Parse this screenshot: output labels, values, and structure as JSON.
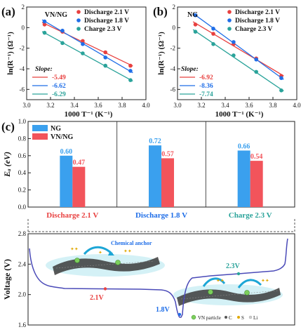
{
  "panels": {
    "a": {
      "label": "(a)",
      "tag": "VN/NG"
    },
    "b": {
      "label": "(b)",
      "tag": "NG"
    },
    "c": {
      "label": "(c)"
    }
  },
  "colors": {
    "red": "#e8403f",
    "blue": "#1f6ee8",
    "teal": "#2aa39a",
    "ng_bar": "#3aa0ee",
    "vnng_bar": "#f2545b",
    "curve": "#4a4ab8"
  },
  "chart_data": [
    {
      "type": "scatter",
      "panel": "a",
      "xlabel": "1000 T⁻¹ (K⁻¹)",
      "ylabel": "ln(R⁻¹) (Ω⁻¹)",
      "xlim": [
        3.0,
        4.0
      ],
      "ylim": [
        -7,
        2
      ],
      "xticks": [
        "3.0",
        "3.2",
        "3.4",
        "3.6",
        "3.8",
        "4.0"
      ],
      "yticks": [
        "-6",
        "-4",
        "-2",
        "0",
        "2"
      ],
      "legend_position": "top-right",
      "slope_title": "Slope:",
      "series": [
        {
          "name": "Discharge 2.1 V",
          "color": "red",
          "slope": "-5.49",
          "x": [
            3.15,
            3.3,
            3.47,
            3.66,
            3.87
          ],
          "y": [
            0.3,
            -0.4,
            -1.3,
            -2.4,
            -3.7
          ]
        },
        {
          "name": "Discharge 1.8 V",
          "color": "blue",
          "slope": "-6.62",
          "x": [
            3.15,
            3.3,
            3.47,
            3.66,
            3.87
          ],
          "y": [
            0.6,
            -0.3,
            -1.6,
            -2.9,
            -4.2
          ]
        },
        {
          "name": "Charge 2.3 V",
          "color": "teal",
          "slope": "-6.29",
          "x": [
            3.15,
            3.3,
            3.47,
            3.66,
            3.87
          ],
          "y": [
            -0.5,
            -1.5,
            -2.5,
            -3.7,
            -5.1
          ]
        }
      ]
    },
    {
      "type": "scatter",
      "panel": "b",
      "xlabel": "1000 T⁻¹ (K⁻¹)",
      "ylabel": "ln(R⁻¹) (Ω⁻¹)",
      "xlim": [
        3.0,
        4.0
      ],
      "ylim": [
        -7,
        2
      ],
      "xticks": [
        "3.0",
        "3.2",
        "3.4",
        "3.6",
        "3.8",
        "4.0"
      ],
      "yticks": [
        "-6",
        "-4",
        "-2",
        "0",
        "2"
      ],
      "legend_position": "top-right",
      "slope_title": "Slope:",
      "series": [
        {
          "name": "Discharge 2.1 V",
          "color": "red",
          "slope": "-6.92",
          "x": [
            3.15,
            3.3,
            3.47,
            3.66,
            3.87
          ],
          "y": [
            0.3,
            -0.6,
            -1.6,
            -3.0,
            -4.7
          ]
        },
        {
          "name": "Discharge 1.8 V",
          "color": "blue",
          "slope": "-8.36",
          "x": [
            3.15,
            3.3,
            3.47,
            3.66,
            3.87
          ],
          "y": [
            1.2,
            -0.1,
            -1.4,
            -3.1,
            -4.9
          ]
        },
        {
          "name": "Charge 2.3 V",
          "color": "teal",
          "slope": "-7.74",
          "x": [
            3.15,
            3.3,
            3.47,
            3.66,
            3.87
          ],
          "y": [
            -0.4,
            -1.6,
            -2.7,
            -4.3,
            -6.1
          ]
        }
      ]
    },
    {
      "type": "bar",
      "panel": "c",
      "ylabel": "Eₐ (eV)",
      "ylim": [
        0,
        1.0
      ],
      "yticks": [
        "0.0",
        "0.2",
        "0.4",
        "0.6",
        "0.8",
        "1.0"
      ],
      "categories": [
        "Discharge 2.1 V",
        "Discharge 1.8 V",
        "Charge 2.3 V"
      ],
      "category_colors": [
        "#e8403f",
        "#1f6ee8",
        "#2aa39a"
      ],
      "legend_position": "top-left",
      "series": [
        {
          "name": "NG",
          "color": "ng_bar",
          "values": [
            0.6,
            0.72,
            0.66
          ],
          "labels": [
            "0.60",
            "0.72",
            "0.66"
          ]
        },
        {
          "name": "VN/NG",
          "color": "vnng_bar",
          "values": [
            0.47,
            0.57,
            0.54
          ],
          "labels": [
            "0.47",
            "0.57",
            "0.54"
          ]
        }
      ]
    },
    {
      "type": "line",
      "panel": "c-bottom",
      "ylabel": "Voltage (V)",
      "ylim": [
        1.6,
        2.8
      ],
      "yticks": [
        "1.6",
        "2.0",
        "2.4",
        "2.8"
      ],
      "annotations": [
        {
          "text": "2.1V",
          "color": "red"
        },
        {
          "text": "1.8V",
          "color": "blue"
        },
        {
          "text": "2.3V",
          "color": "teal"
        },
        {
          "text": "Chemical anchor",
          "color": "blue"
        }
      ],
      "key": [
        "VN particle",
        "C",
        "S",
        "Li"
      ]
    }
  ]
}
